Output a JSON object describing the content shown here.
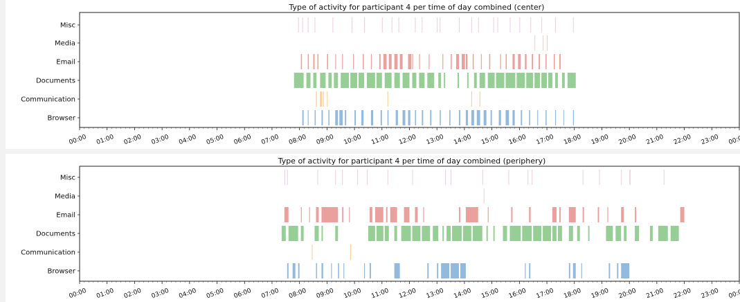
{
  "chart_data": [
    {
      "type": "event_strip",
      "title": "Type of activity for participant 4 per time of day combined (center)",
      "categories": [
        "Misc",
        "Media",
        "Email",
        "Documents",
        "Communication",
        "Browser"
      ],
      "colors": {
        "Misc": "#d9a6c9",
        "Media": "#c9b0a8",
        "Email": "#d9534f",
        "Documents": "#3fa63f",
        "Communication": "#f0a030",
        "Browser": "#3a7fc0"
      },
      "xlim": [
        "00:00",
        "24:00"
      ],
      "x_tick_labels": [
        "00:00",
        "01:00",
        "02:00",
        "03:00",
        "04:00",
        "05:00",
        "06:00",
        "07:00",
        "08:00",
        "09:00",
        "10:00",
        "11:00",
        "12:00",
        "13:00",
        "14:00",
        "15:00",
        "16:00",
        "17:00",
        "18:00",
        "19:00",
        "20:00",
        "21:00",
        "22:00",
        "23:00",
        "00:00"
      ],
      "events_hours": {
        "Misc": [
          [
            7.95,
            0.02
          ],
          [
            8.1,
            0.02
          ],
          [
            8.3,
            0.02
          ],
          [
            8.55,
            0.02
          ],
          [
            9.2,
            0.02
          ],
          [
            9.9,
            0.02
          ],
          [
            10.35,
            0.03
          ],
          [
            11.0,
            0.02
          ],
          [
            11.35,
            0.02
          ],
          [
            11.6,
            0.02
          ],
          [
            12.2,
            0.02
          ],
          [
            12.45,
            0.02
          ],
          [
            13.0,
            0.02
          ],
          [
            13.1,
            0.02
          ],
          [
            13.8,
            0.02
          ],
          [
            14.25,
            0.02
          ],
          [
            14.5,
            0.02
          ],
          [
            15.05,
            0.02
          ],
          [
            15.2,
            0.02
          ],
          [
            15.65,
            0.02
          ],
          [
            16.0,
            0.02
          ],
          [
            16.4,
            0.02
          ],
          [
            16.8,
            0.02
          ],
          [
            17.3,
            0.02
          ],
          [
            17.95,
            0.02
          ]
        ],
        "Media": [
          [
            16.55,
            0.02
          ],
          [
            16.85,
            0.02
          ],
          [
            17.0,
            0.02
          ]
        ],
        "Email": [
          [
            8.05,
            0.04
          ],
          [
            8.3,
            0.04
          ],
          [
            8.5,
            0.05
          ],
          [
            8.65,
            0.04
          ],
          [
            9.0,
            0.04
          ],
          [
            9.3,
            0.03
          ],
          [
            9.55,
            0.03
          ],
          [
            9.95,
            0.03
          ],
          [
            10.3,
            0.04
          ],
          [
            10.6,
            0.03
          ],
          [
            10.9,
            0.05
          ],
          [
            11.05,
            0.12
          ],
          [
            11.25,
            0.1
          ],
          [
            11.45,
            0.12
          ],
          [
            11.65,
            0.1
          ],
          [
            11.95,
            0.12
          ],
          [
            12.1,
            0.03
          ],
          [
            12.35,
            0.03
          ],
          [
            12.7,
            0.03
          ],
          [
            13.2,
            0.03
          ],
          [
            13.5,
            0.04
          ],
          [
            13.7,
            0.1
          ],
          [
            13.9,
            0.12
          ],
          [
            14.05,
            0.06
          ],
          [
            14.3,
            0.04
          ],
          [
            14.6,
            0.03
          ],
          [
            14.9,
            0.04
          ],
          [
            15.3,
            0.03
          ],
          [
            15.5,
            0.04
          ],
          [
            15.75,
            0.08
          ],
          [
            15.95,
            0.1
          ],
          [
            16.2,
            0.06
          ],
          [
            16.45,
            0.05
          ],
          [
            16.7,
            0.05
          ],
          [
            16.95,
            0.04
          ],
          [
            17.25,
            0.04
          ],
          [
            17.45,
            0.05
          ]
        ],
        "Documents": [
          [
            7.8,
            0.35
          ],
          [
            8.25,
            0.15
          ],
          [
            8.5,
            0.12
          ],
          [
            8.75,
            0.2
          ],
          [
            9.05,
            0.12
          ],
          [
            9.25,
            0.15
          ],
          [
            9.5,
            0.3
          ],
          [
            9.85,
            0.25
          ],
          [
            10.15,
            0.2
          ],
          [
            10.45,
            0.3
          ],
          [
            10.8,
            0.2
          ],
          [
            11.1,
            0.25
          ],
          [
            11.45,
            0.2
          ],
          [
            11.75,
            0.25
          ],
          [
            12.1,
            0.15
          ],
          [
            12.35,
            0.2
          ],
          [
            12.65,
            0.25
          ],
          [
            13.05,
            0.1
          ],
          [
            13.25,
            0.05
          ],
          [
            13.75,
            0.05
          ],
          [
            14.1,
            0.05
          ],
          [
            14.35,
            0.1
          ],
          [
            14.55,
            0.2
          ],
          [
            14.85,
            0.25
          ],
          [
            15.15,
            0.3
          ],
          [
            15.5,
            0.35
          ],
          [
            15.9,
            0.3
          ],
          [
            16.25,
            0.25
          ],
          [
            16.55,
            0.2
          ],
          [
            16.8,
            0.2
          ],
          [
            17.05,
            0.15
          ],
          [
            17.3,
            0.1
          ],
          [
            17.55,
            0.1
          ],
          [
            17.75,
            0.3
          ]
        ],
        "Communication": [
          [
            8.6,
            0.03
          ],
          [
            8.75,
            0.06
          ],
          [
            8.85,
            0.03
          ],
          [
            9.0,
            0.02
          ],
          [
            11.2,
            0.02
          ],
          [
            14.25,
            0.02
          ],
          [
            14.55,
            0.02
          ]
        ],
        "Browser": [
          [
            8.1,
            0.05
          ],
          [
            8.3,
            0.03
          ],
          [
            8.55,
            0.04
          ],
          [
            8.8,
            0.05
          ],
          [
            9.05,
            0.04
          ],
          [
            9.3,
            0.1
          ],
          [
            9.45,
            0.12
          ],
          [
            9.65,
            0.05
          ],
          [
            10.0,
            0.05
          ],
          [
            10.25,
            0.08
          ],
          [
            10.6,
            0.08
          ],
          [
            10.95,
            0.05
          ],
          [
            11.2,
            0.04
          ],
          [
            11.5,
            0.08
          ],
          [
            11.75,
            0.1
          ],
          [
            11.95,
            0.08
          ],
          [
            12.2,
            0.04
          ],
          [
            12.45,
            0.05
          ],
          [
            12.75,
            0.05
          ],
          [
            13.1,
            0.04
          ],
          [
            13.45,
            0.04
          ],
          [
            13.8,
            0.05
          ],
          [
            14.05,
            0.08
          ],
          [
            14.25,
            0.1
          ],
          [
            14.45,
            0.12
          ],
          [
            14.7,
            0.1
          ],
          [
            14.95,
            0.05
          ],
          [
            15.25,
            0.08
          ],
          [
            15.5,
            0.12
          ],
          [
            15.75,
            0.08
          ],
          [
            16.05,
            0.05
          ],
          [
            16.35,
            0.04
          ],
          [
            16.65,
            0.03
          ],
          [
            16.95,
            0.04
          ],
          [
            17.3,
            0.03
          ],
          [
            17.6,
            0.02
          ],
          [
            17.95,
            0.03
          ]
        ]
      }
    },
    {
      "type": "event_strip",
      "title": "Type of activity for participant 4 per time of day combined (periphery)",
      "categories": [
        "Misc",
        "Media",
        "Email",
        "Documents",
        "Communication",
        "Browser"
      ],
      "colors": {
        "Misc": "#d9a6c9",
        "Media": "#c9b0a8",
        "Email": "#d9534f",
        "Documents": "#3fa63f",
        "Communication": "#f0a030",
        "Browser": "#3a7fc0"
      },
      "xlim": [
        "00:00",
        "24:00"
      ],
      "x_tick_labels": [
        "00:00",
        "01:00",
        "02:00",
        "03:00",
        "04:00",
        "05:00",
        "06:00",
        "07:00",
        "08:00",
        "09:00",
        "10:00",
        "11:00",
        "12:00",
        "13:00",
        "14:00",
        "15:00",
        "16:00",
        "17:00",
        "18:00",
        "19:00",
        "20:00",
        "21:00",
        "22:00",
        "23:00",
        "00:00"
      ],
      "events_hours": {
        "Misc": [
          [
            7.45,
            0.02
          ],
          [
            7.55,
            0.02
          ],
          [
            8.65,
            0.02
          ],
          [
            9.3,
            0.02
          ],
          [
            9.55,
            0.02
          ],
          [
            10.1,
            0.02
          ],
          [
            10.45,
            0.02
          ],
          [
            11.2,
            0.02
          ],
          [
            12.1,
            0.02
          ],
          [
            13.3,
            0.02
          ],
          [
            13.5,
            0.02
          ],
          [
            14.65,
            0.02
          ],
          [
            15.6,
            0.02
          ],
          [
            16.3,
            0.02
          ],
          [
            16.45,
            0.02
          ],
          [
            18.3,
            0.02
          ],
          [
            18.9,
            0.02
          ],
          [
            19.7,
            0.02
          ],
          [
            20.0,
            0.04
          ],
          [
            21.25,
            0.02
          ]
        ],
        "Media": [
          [
            14.7,
            0.02
          ]
        ],
        "Email": [
          [
            7.45,
            0.15
          ],
          [
            8.05,
            0.03
          ],
          [
            8.35,
            0.03
          ],
          [
            8.6,
            0.1
          ],
          [
            8.8,
            0.6
          ],
          [
            9.55,
            0.05
          ],
          [
            9.8,
            0.03
          ],
          [
            10.55,
            0.1
          ],
          [
            10.75,
            0.3
          ],
          [
            11.15,
            0.05
          ],
          [
            11.3,
            0.25
          ],
          [
            11.8,
            0.2
          ],
          [
            12.2,
            0.1
          ],
          [
            12.5,
            0.03
          ],
          [
            13.8,
            0.05
          ],
          [
            14.05,
            0.45
          ],
          [
            14.85,
            0.03
          ],
          [
            15.7,
            0.05
          ],
          [
            16.35,
            0.06
          ],
          [
            17.2,
            0.15
          ],
          [
            17.45,
            0.05
          ],
          [
            17.8,
            0.25
          ],
          [
            18.3,
            0.05
          ],
          [
            18.85,
            0.05
          ],
          [
            19.2,
            0.03
          ],
          [
            19.7,
            0.1
          ],
          [
            20.2,
            0.05
          ],
          [
            21.85,
            0.15
          ]
        ],
        "Documents": [
          [
            7.35,
            0.15
          ],
          [
            7.6,
            0.35
          ],
          [
            8.05,
            0.1
          ],
          [
            8.55,
            0.15
          ],
          [
            8.8,
            0.05
          ],
          [
            9.3,
            0.1
          ],
          [
            10.5,
            0.25
          ],
          [
            10.8,
            0.25
          ],
          [
            11.1,
            0.15
          ],
          [
            11.45,
            0.1
          ],
          [
            11.7,
            0.35
          ],
          [
            12.1,
            0.3
          ],
          [
            12.45,
            0.3
          ],
          [
            12.85,
            0.2
          ],
          [
            13.2,
            0.05
          ],
          [
            13.35,
            0.15
          ],
          [
            13.55,
            0.35
          ],
          [
            13.95,
            0.3
          ],
          [
            14.3,
            0.35
          ],
          [
            14.8,
            0.05
          ],
          [
            15.05,
            0.05
          ],
          [
            15.4,
            0.15
          ],
          [
            15.65,
            0.4
          ],
          [
            16.1,
            0.35
          ],
          [
            16.5,
            0.3
          ],
          [
            16.85,
            0.3
          ],
          [
            17.2,
            0.15
          ],
          [
            17.4,
            0.15
          ],
          [
            17.8,
            0.15
          ],
          [
            18.1,
            0.1
          ],
          [
            18.5,
            0.05
          ],
          [
            19.15,
            0.25
          ],
          [
            19.5,
            0.2
          ],
          [
            19.8,
            0.1
          ],
          [
            20.2,
            0.15
          ],
          [
            20.75,
            0.1
          ],
          [
            21.05,
            0.35
          ],
          [
            21.5,
            0.3
          ]
        ],
        "Communication": [
          [
            8.45,
            0.02
          ],
          [
            9.85,
            0.02
          ]
        ],
        "Browser": [
          [
            7.55,
            0.05
          ],
          [
            7.75,
            0.1
          ],
          [
            7.95,
            0.05
          ],
          [
            8.6,
            0.04
          ],
          [
            8.8,
            0.06
          ],
          [
            9.15,
            0.03
          ],
          [
            9.4,
            0.04
          ],
          [
            9.6,
            0.03
          ],
          [
            10.35,
            0.03
          ],
          [
            10.55,
            0.05
          ],
          [
            11.45,
            0.2
          ],
          [
            12.65,
            0.05
          ],
          [
            13.0,
            0.05
          ],
          [
            13.15,
            0.3
          ],
          [
            13.5,
            0.3
          ],
          [
            13.85,
            0.2
          ],
          [
            16.2,
            0.03
          ],
          [
            16.35,
            0.05
          ],
          [
            17.8,
            0.05
          ],
          [
            17.95,
            0.1
          ],
          [
            18.25,
            0.03
          ],
          [
            19.25,
            0.05
          ],
          [
            19.55,
            0.05
          ],
          [
            19.7,
            0.3
          ]
        ]
      }
    }
  ]
}
